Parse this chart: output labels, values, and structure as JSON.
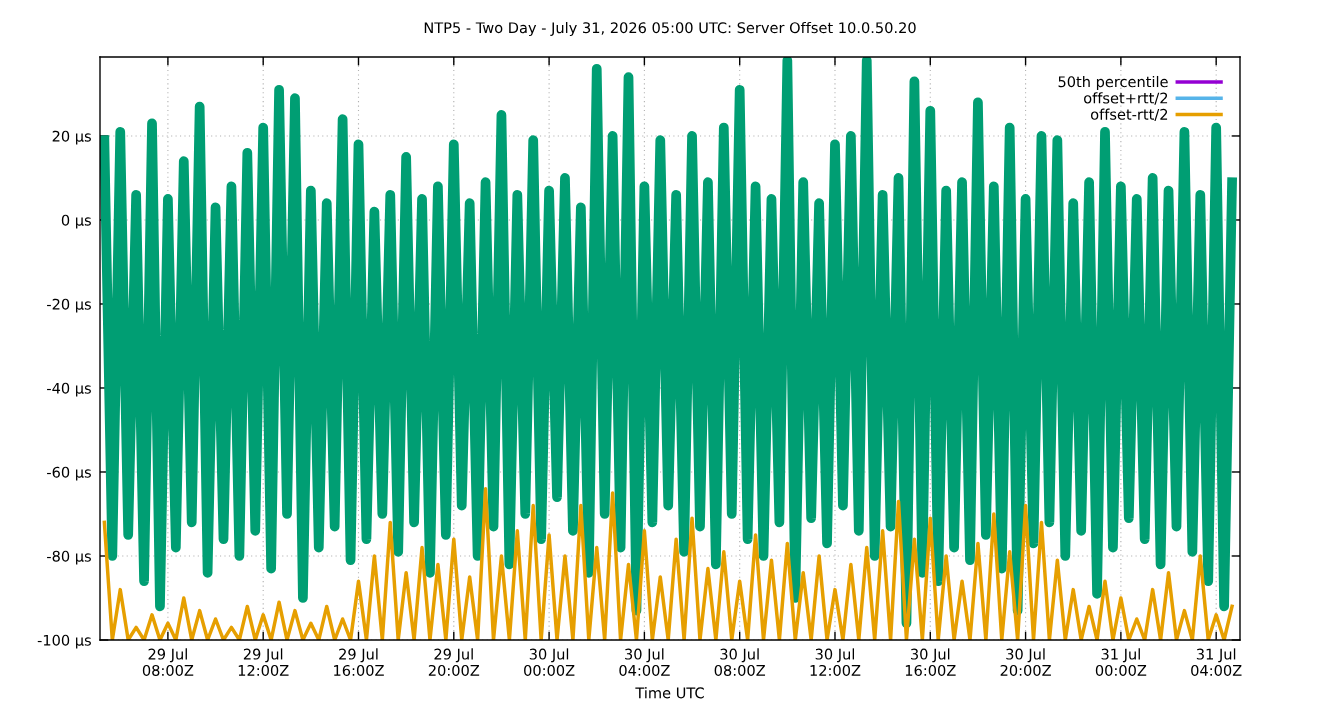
{
  "chart_data": {
    "type": "line",
    "title": "NTP5 - Two Day - July 31, 2026 05:00 UTC: Server Offset 10.0.50.20",
    "xlabel": "Time UTC",
    "x": [
      "2026-07-29T05:20",
      "2026-07-29T05:40",
      "2026-07-29T06:00",
      "2026-07-29T06:20",
      "2026-07-29T06:40",
      "2026-07-29T07:00",
      "2026-07-29T07:20",
      "2026-07-29T07:40",
      "2026-07-29T08:00",
      "2026-07-29T08:20",
      "2026-07-29T08:40",
      "2026-07-29T09:00",
      "2026-07-29T09:20",
      "2026-07-29T09:40",
      "2026-07-29T10:00",
      "2026-07-29T10:20",
      "2026-07-29T10:40",
      "2026-07-29T11:00",
      "2026-07-29T11:20",
      "2026-07-29T11:40",
      "2026-07-29T12:00",
      "2026-07-29T12:20",
      "2026-07-29T12:40",
      "2026-07-29T13:00",
      "2026-07-29T13:20",
      "2026-07-29T13:40",
      "2026-07-29T14:00",
      "2026-07-29T14:20",
      "2026-07-29T14:40",
      "2026-07-29T15:00",
      "2026-07-29T15:20",
      "2026-07-29T15:40",
      "2026-07-29T16:00",
      "2026-07-29T16:20",
      "2026-07-29T16:40",
      "2026-07-29T17:00",
      "2026-07-29T17:20",
      "2026-07-29T17:40",
      "2026-07-29T18:00",
      "2026-07-29T18:20",
      "2026-07-29T18:40",
      "2026-07-29T19:00",
      "2026-07-29T19:20",
      "2026-07-29T19:40",
      "2026-07-29T20:00",
      "2026-07-29T20:20",
      "2026-07-29T20:40",
      "2026-07-29T21:00",
      "2026-07-29T21:20",
      "2026-07-29T21:40",
      "2026-07-29T22:00",
      "2026-07-29T22:20",
      "2026-07-29T22:40",
      "2026-07-29T23:00",
      "2026-07-29T23:20",
      "2026-07-29T23:40",
      "2026-07-30T00:00",
      "2026-07-30T00:20",
      "2026-07-30T00:40",
      "2026-07-30T01:00",
      "2026-07-30T01:20",
      "2026-07-30T01:40",
      "2026-07-30T02:00",
      "2026-07-30T02:20",
      "2026-07-30T02:40",
      "2026-07-30T03:00",
      "2026-07-30T03:20",
      "2026-07-30T03:40",
      "2026-07-30T04:00",
      "2026-07-30T04:20",
      "2026-07-30T04:40",
      "2026-07-30T05:00",
      "2026-07-30T05:20",
      "2026-07-30T05:40",
      "2026-07-30T06:00",
      "2026-07-30T06:20",
      "2026-07-30T06:40",
      "2026-07-30T07:00",
      "2026-07-30T07:20",
      "2026-07-30T07:40",
      "2026-07-30T08:00",
      "2026-07-30T08:20",
      "2026-07-30T08:40",
      "2026-07-30T09:00",
      "2026-07-30T09:20",
      "2026-07-30T09:40",
      "2026-07-30T10:00",
      "2026-07-30T10:20",
      "2026-07-30T10:40",
      "2026-07-30T11:00",
      "2026-07-30T11:20",
      "2026-07-30T11:40",
      "2026-07-30T12:00",
      "2026-07-30T12:20",
      "2026-07-30T12:40",
      "2026-07-30T13:00",
      "2026-07-30T13:20",
      "2026-07-30T13:40",
      "2026-07-30T14:00",
      "2026-07-30T14:20",
      "2026-07-30T14:40",
      "2026-07-30T15:00",
      "2026-07-30T15:20",
      "2026-07-30T15:40",
      "2026-07-30T16:00",
      "2026-07-30T16:20",
      "2026-07-30T16:40",
      "2026-07-30T17:00",
      "2026-07-30T17:20",
      "2026-07-30T17:40",
      "2026-07-30T18:00",
      "2026-07-30T18:20",
      "2026-07-30T18:40",
      "2026-07-30T19:00",
      "2026-07-30T19:20",
      "2026-07-30T19:40",
      "2026-07-30T20:00",
      "2026-07-30T20:20",
      "2026-07-30T20:40",
      "2026-07-30T21:00",
      "2026-07-30T21:20",
      "2026-07-30T21:40",
      "2026-07-30T22:00",
      "2026-07-30T22:20",
      "2026-07-30T22:40",
      "2026-07-30T23:00",
      "2026-07-30T23:20",
      "2026-07-30T23:40",
      "2026-07-31T00:00",
      "2026-07-31T00:20",
      "2026-07-31T00:40",
      "2026-07-31T01:00",
      "2026-07-31T01:20",
      "2026-07-31T01:40",
      "2026-07-31T02:00",
      "2026-07-31T02:20",
      "2026-07-31T02:40",
      "2026-07-31T03:00",
      "2026-07-31T03:20",
      "2026-07-31T03:40",
      "2026-07-31T04:00",
      "2026-07-31T04:20",
      "2026-07-31T04:40"
    ],
    "series": [
      {
        "name": "50th percentile",
        "color": "#9400d3",
        "values": [
          null,
          null,
          null,
          null,
          null,
          null,
          null,
          null,
          null,
          null,
          null,
          null,
          null,
          null,
          null,
          null,
          null,
          null,
          null,
          null,
          null,
          null,
          null,
          null,
          null,
          null,
          null,
          null,
          null,
          null,
          null,
          null,
          null,
          null,
          null,
          null,
          null,
          null,
          null,
          null,
          null,
          null,
          null,
          null,
          null,
          null,
          null,
          null,
          null,
          null,
          null,
          null,
          null,
          null,
          null,
          null,
          null,
          null,
          null,
          null,
          null,
          null,
          null,
          null,
          null,
          null,
          null,
          null,
          null,
          null,
          null,
          null,
          null,
          null,
          null,
          null,
          null,
          null,
          null,
          null,
          null,
          null,
          null,
          null,
          null,
          null,
          null,
          null,
          null,
          null,
          null,
          null,
          null,
          null,
          null,
          null,
          null,
          null,
          null,
          null,
          null,
          null,
          null,
          null,
          null,
          null,
          null,
          null,
          null,
          null,
          null,
          null,
          null,
          null,
          null,
          null,
          null,
          null,
          null,
          null,
          null,
          null,
          null,
          null,
          null,
          null,
          null,
          null,
          null,
          null,
          null,
          null,
          null,
          null,
          null,
          null,
          null,
          null,
          null,
          null,
          null,
          null,
          null
        ]
      },
      {
        "color": "#009e73",
        "values": [
          19,
          -80,
          21,
          -75,
          6,
          -86,
          23,
          -92,
          5,
          -78,
          14,
          -72,
          27,
          -84,
          3,
          -76,
          8,
          -80,
          16,
          -74,
          22,
          -83,
          31,
          -70,
          29,
          -90,
          7,
          -78,
          4,
          -73,
          24,
          -81,
          18,
          -76,
          2,
          -70,
          6,
          -79,
          15,
          -72,
          5,
          -84,
          8,
          -75,
          18,
          -68,
          4,
          -80,
          9,
          -73,
          25,
          -82,
          6,
          -70,
          19,
          -76,
          7,
          -66,
          10,
          -74,
          3,
          -84,
          36,
          -70,
          20,
          -78,
          34,
          -93,
          8,
          -72,
          19,
          -68,
          6,
          -79,
          20,
          -73,
          9,
          -82,
          22,
          -70,
          31,
          -76,
          8,
          -80,
          5,
          -72,
          38,
          -90,
          9,
          -71,
          4,
          -77,
          18,
          -68,
          20,
          -74,
          38,
          -80,
          6,
          -73,
          10,
          -96,
          33,
          -84,
          26,
          -86,
          7,
          -78,
          9,
          -81,
          28,
          -75,
          8,
          -83,
          22,
          -93,
          5,
          -77,
          20,
          -72,
          19,
          -80,
          4,
          -74,
          9,
          -89,
          21,
          -78,
          8,
          -71,
          5,
          -76,
          10,
          -82,
          7,
          -73,
          21,
          -79,
          6,
          -86,
          22,
          -92,
          9
        ]
      },
      {
        "name": "offset+rtt/2",
        "color": "#56b4e9",
        "values": [
          null,
          null,
          null,
          null,
          null,
          null,
          null,
          null,
          null,
          null,
          null,
          null,
          null,
          null,
          null,
          null,
          null,
          null,
          null,
          null,
          null,
          null,
          null,
          null,
          null,
          null,
          null,
          null,
          null,
          null,
          null,
          null,
          null,
          null,
          null,
          null,
          null,
          null,
          null,
          null,
          null,
          null,
          null,
          null,
          null,
          null,
          null,
          null,
          null,
          null,
          null,
          null,
          null,
          null,
          null,
          null,
          null,
          null,
          null,
          null,
          null,
          null,
          null,
          null,
          null,
          null,
          null,
          null,
          null,
          null,
          null,
          null,
          null,
          null,
          null,
          null,
          null,
          null,
          null,
          null,
          null,
          null,
          null,
          null,
          null,
          null,
          null,
          null,
          null,
          null,
          null,
          null,
          null,
          null,
          null,
          null,
          null,
          null,
          null,
          null,
          null,
          null,
          null,
          null,
          null,
          null,
          null,
          null,
          null,
          null,
          null,
          null,
          null,
          null,
          null,
          null,
          null,
          null,
          null,
          null,
          null,
          null,
          null,
          null,
          null,
          null,
          null,
          null,
          null,
          null,
          null,
          null,
          null,
          null,
          null,
          null,
          null,
          null,
          null,
          null,
          null,
          null,
          null
        ]
      },
      {
        "name": "offset-rtt/2",
        "color": "#e69f00",
        "values": [
          -72,
          -100,
          -88,
          -100,
          -97,
          -100,
          -94,
          -100,
          -96,
          -100,
          -90,
          -100,
          -93,
          -100,
          -95,
          -100,
          -97,
          -100,
          -92,
          -100,
          -94,
          -100,
          -91,
          -100,
          -93,
          -100,
          -96,
          -100,
          -92,
          -100,
          -95,
          -100,
          -86,
          -100,
          -80,
          -100,
          -72,
          -100,
          -84,
          -100,
          -78,
          -100,
          -82,
          -100,
          -76,
          -100,
          -85,
          -100,
          -64,
          -100,
          -80,
          -100,
          -74,
          -100,
          -68,
          -100,
          -75,
          -100,
          -80,
          -100,
          -68,
          -100,
          -78,
          -100,
          -65,
          -100,
          -82,
          -100,
          -74,
          -100,
          -85,
          -100,
          -76,
          -100,
          -71,
          -100,
          -83,
          -100,
          -79,
          -100,
          -86,
          -100,
          -75,
          -100,
          -81,
          -100,
          -77,
          -100,
          -84,
          -100,
          -80,
          -100,
          -88,
          -100,
          -82,
          -100,
          -78,
          -100,
          -74,
          -100,
          -67,
          -100,
          -76,
          -100,
          -71,
          -100,
          -80,
          -100,
          -86,
          -100,
          -77,
          -100,
          -70,
          -100,
          -79,
          -100,
          -68,
          -100,
          -72,
          -100,
          -81,
          -100,
          -88,
          -100,
          -92,
          -100,
          -86,
          -100,
          -90,
          -100,
          -95,
          -100,
          -88,
          -100,
          -84,
          -100,
          -93,
          -100,
          -80,
          -100,
          -94,
          -100,
          -92
        ]
      }
    ],
    "xlim": [
      "2026-07-29T05:09",
      "2026-07-31T05:00"
    ],
    "xticks": [
      {
        "value": "2026-07-29T08:00",
        "label": "29 Jul\n08:00Z"
      },
      {
        "value": "2026-07-29T12:00",
        "label": "29 Jul\n12:00Z"
      },
      {
        "value": "2026-07-29T16:00",
        "label": "29 Jul\n16:00Z"
      },
      {
        "value": "2026-07-29T20:00",
        "label": "29 Jul\n20:00Z"
      },
      {
        "value": "2026-07-30T00:00",
        "label": "30 Jul\n00:00Z"
      },
      {
        "value": "2026-07-30T04:00",
        "label": "30 Jul\n04:00Z"
      },
      {
        "value": "2026-07-30T08:00",
        "label": "30 Jul\n08:00Z"
      },
      {
        "value": "2026-07-30T12:00",
        "label": "30 Jul\n12:00Z"
      },
      {
        "value": "2026-07-30T16:00",
        "label": "30 Jul\n16:00Z"
      },
      {
        "value": "2026-07-30T20:00",
        "label": "30 Jul\n20:00Z"
      },
      {
        "value": "2026-07-31T00:00",
        "label": "31 Jul\n00:00Z"
      },
      {
        "value": "2026-07-31T04:00",
        "label": "31 Jul\n04:00Z"
      }
    ],
    "ylim": [
      -100,
      38.8
    ],
    "yticks": [
      {
        "value": -100,
        "label": "-100 µs"
      },
      {
        "value": -80,
        "label": "-80 µs"
      },
      {
        "value": -60,
        "label": "-60 µs"
      },
      {
        "value": -40,
        "label": "-40 µs"
      },
      {
        "value": -20,
        "label": "-20 µs"
      },
      {
        "value": 0,
        "label": "0 µs"
      },
      {
        "value": 20,
        "label": "20 µs"
      }
    ],
    "grid": true,
    "legend": "top right"
  }
}
